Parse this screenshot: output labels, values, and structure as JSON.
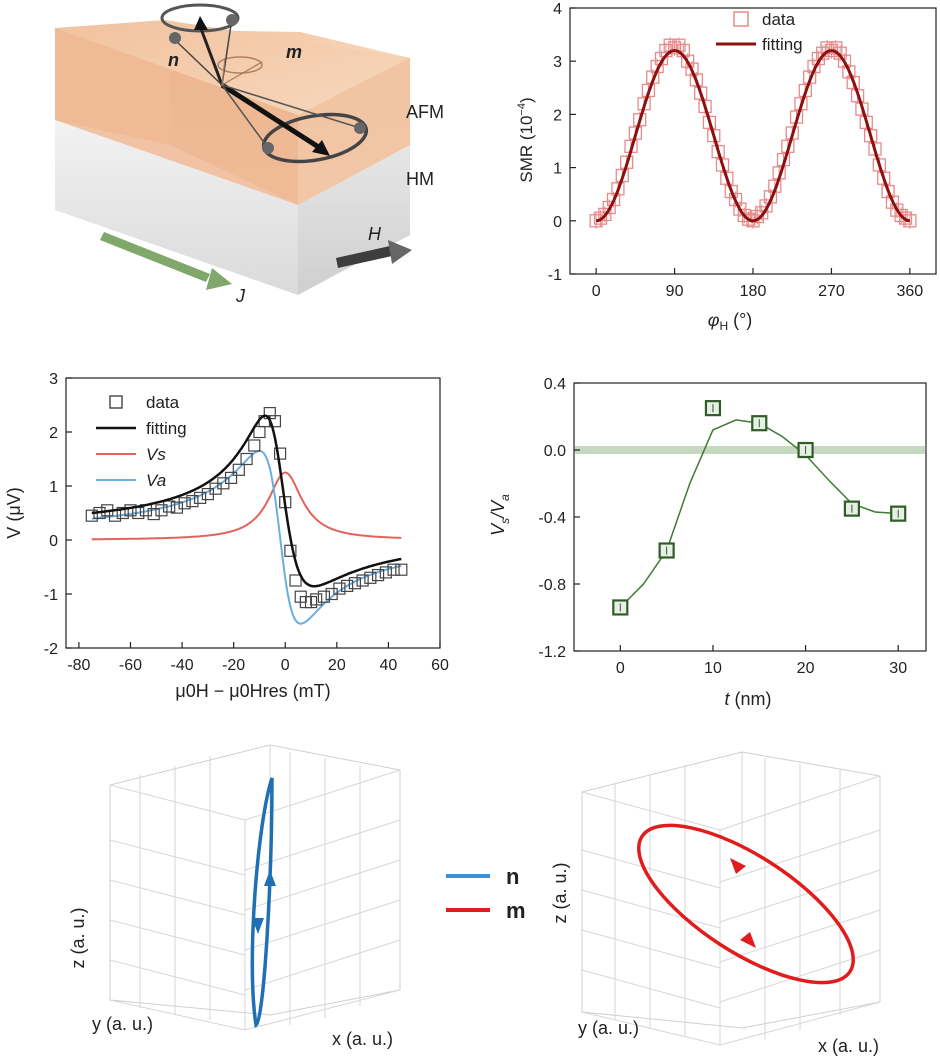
{
  "schematic": {
    "labels": {
      "n": "n",
      "m": "m",
      "afm": "AFM",
      "hm": "HM",
      "h": "H",
      "j": "J"
    },
    "colors": {
      "afm_top": "#f4cba8",
      "afm_side": "#e9a77c",
      "hm": "#e3e3e3",
      "j_arrow": "#7fa86a",
      "h_arrow": "#444444"
    }
  },
  "chart_data": [
    {
      "id": "smr",
      "type": "scatter+line",
      "title": "",
      "xlabel": "φ",
      "xlabel_sub": "H",
      "xlabel_unit": " (°)",
      "ylabel": "SMR (10",
      "ylabel_sup": "−4",
      "ylabel_tail": ")",
      "xlim": [
        -30,
        390
      ],
      "ylim": [
        -1,
        4
      ],
      "xticks": [
        0,
        90,
        180,
        270,
        360
      ],
      "yticks": [
        -1,
        0,
        1,
        2,
        3,
        4
      ],
      "legend": [
        "data",
        "fitting"
      ],
      "legend_position": "top-right",
      "colors": {
        "data": "#e88a8a",
        "fitting": "#8b1010"
      },
      "model": {
        "amplitude": 3.2,
        "period_deg": 180
      },
      "x": [
        0,
        5,
        10,
        15,
        20,
        25,
        30,
        35,
        40,
        45,
        50,
        55,
        60,
        65,
        70,
        75,
        80,
        85,
        90,
        95,
        100,
        105,
        110,
        115,
        120,
        125,
        130,
        135,
        140,
        145,
        150,
        155,
        160,
        165,
        170,
        175,
        180,
        185,
        190,
        195,
        200,
        205,
        210,
        215,
        220,
        225,
        230,
        235,
        240,
        245,
        250,
        255,
        260,
        265,
        270,
        275,
        280,
        285,
        290,
        295,
        300,
        305,
        310,
        315,
        320,
        325,
        330,
        335,
        340,
        345,
        350,
        355,
        360
      ],
      "y": [
        0.0,
        0.05,
        0.12,
        0.25,
        0.4,
        0.6,
        0.85,
        1.1,
        1.4,
        1.65,
        1.9,
        2.2,
        2.45,
        2.7,
        2.9,
        3.05,
        3.2,
        3.3,
        3.25,
        3.3,
        3.2,
        3.0,
        2.85,
        2.65,
        2.4,
        2.15,
        1.85,
        1.6,
        1.3,
        1.05,
        0.8,
        0.55,
        0.4,
        0.22,
        0.1,
        0.03,
        0.0,
        0.08,
        0.15,
        0.28,
        0.45,
        0.65,
        0.9,
        1.15,
        1.4,
        1.65,
        1.95,
        2.2,
        2.45,
        2.7,
        2.9,
        3.05,
        3.15,
        3.25,
        3.2,
        3.25,
        3.15,
        3.0,
        2.8,
        2.6,
        2.35,
        2.1,
        1.85,
        1.6,
        1.35,
        1.05,
        0.8,
        0.55,
        0.35,
        0.2,
        0.1,
        0.05,
        0.0
      ]
    },
    {
      "id": "stfmr",
      "type": "scatter+line",
      "xlabel": "μ0H − μ0Hres (mT)",
      "ylabel": "V (μV)",
      "xlim": [
        -85,
        60
      ],
      "ylim": [
        -2,
        3
      ],
      "xticks": [
        -80,
        -60,
        -40,
        -20,
        0,
        20,
        40,
        60
      ],
      "yticks": [
        -2,
        -1,
        0,
        1,
        2,
        3
      ],
      "legend": [
        "data",
        "fitting",
        "Vs",
        "Va"
      ],
      "legend_position": "top-left",
      "colors": {
        "data": "#444444",
        "fitting": "#111111",
        "vs": "#e0645c",
        "va": "#6aaee0"
      },
      "model": {
        "vs_amplitude": 1.25,
        "va_amplitude": 1.6,
        "linewidth_mT": 8,
        "offset": 0.15
      },
      "x": [
        -75,
        -72,
        -69,
        -66,
        -63,
        -60,
        -57,
        -54,
        -51,
        -48,
        -45,
        -42,
        -39,
        -36,
        -33,
        -30,
        -27,
        -24,
        -21,
        -18,
        -15,
        -12,
        -10,
        -8,
        -6,
        -4,
        -2,
        0,
        2,
        4,
        6,
        8,
        10,
        12,
        15,
        18,
        21,
        24,
        27,
        30,
        33,
        36,
        39,
        42,
        45
      ],
      "y": [
        0.45,
        0.5,
        0.55,
        0.45,
        0.5,
        0.55,
        0.5,
        0.55,
        0.48,
        0.55,
        0.62,
        0.6,
        0.68,
        0.72,
        0.78,
        0.85,
        0.95,
        1.05,
        1.15,
        1.3,
        1.5,
        1.75,
        2.0,
        2.2,
        2.35,
        2.2,
        1.6,
        0.7,
        -0.2,
        -0.75,
        -1.05,
        -1.15,
        -1.15,
        -1.1,
        -1.05,
        -1.0,
        -0.9,
        -0.85,
        -0.8,
        -0.75,
        -0.7,
        -0.65,
        -0.6,
        -0.55,
        -0.55
      ]
    },
    {
      "id": "ratio",
      "type": "scatter+line",
      "xlabel": "t",
      "xlabel_unit": " (nm)",
      "ylabel": "V",
      "ylabel_sub1": "s",
      "ylabel_mid": "/V",
      "ylabel_sub2": "a",
      "xlim": [
        -5,
        33
      ],
      "ylim": [
        -1.2,
        0.4
      ],
      "xticks": [
        0,
        10,
        20,
        30
      ],
      "yticks": [
        -1.2,
        -0.8,
        -0.4,
        0.0,
        0.4
      ],
      "ytick_labels": [
        "-1.2",
        "-0.8",
        "-0.4",
        "0.0",
        "0.4"
      ],
      "zero_band": 0.0,
      "colors": {
        "marker": "#2e5e26",
        "line": "#3f7a33",
        "band": "#c5d9c0"
      },
      "x": [
        0,
        5,
        10,
        15,
        20,
        25,
        30
      ],
      "y": [
        -0.94,
        -0.6,
        0.25,
        0.16,
        0.0,
        -0.35,
        -0.38
      ],
      "curve_x": [
        0,
        2.5,
        5,
        7.5,
        10,
        12.5,
        15,
        17.5,
        20,
        22.5,
        25,
        27.5,
        30
      ],
      "curve_y": [
        -0.94,
        -0.8,
        -0.6,
        -0.2,
        0.12,
        0.18,
        0.16,
        0.08,
        -0.03,
        -0.18,
        -0.32,
        -0.37,
        -0.38
      ]
    },
    {
      "id": "traj_n",
      "type": "3d-line",
      "xlabel": "x (a. u.)",
      "ylabel": "y (a. u.)",
      "zlabel": "z (a. u.)",
      "color": "#1f6fb5"
    },
    {
      "id": "traj_m",
      "type": "3d-line",
      "xlabel": "x (a. u.)",
      "ylabel": "y (a. u.)",
      "zlabel": "z (a. u.)",
      "color": "#e01c1c"
    }
  ],
  "legend3d": {
    "n": "n",
    "m": "m",
    "n_color": "#3a8fd6",
    "m_color": "#e01c1c"
  }
}
